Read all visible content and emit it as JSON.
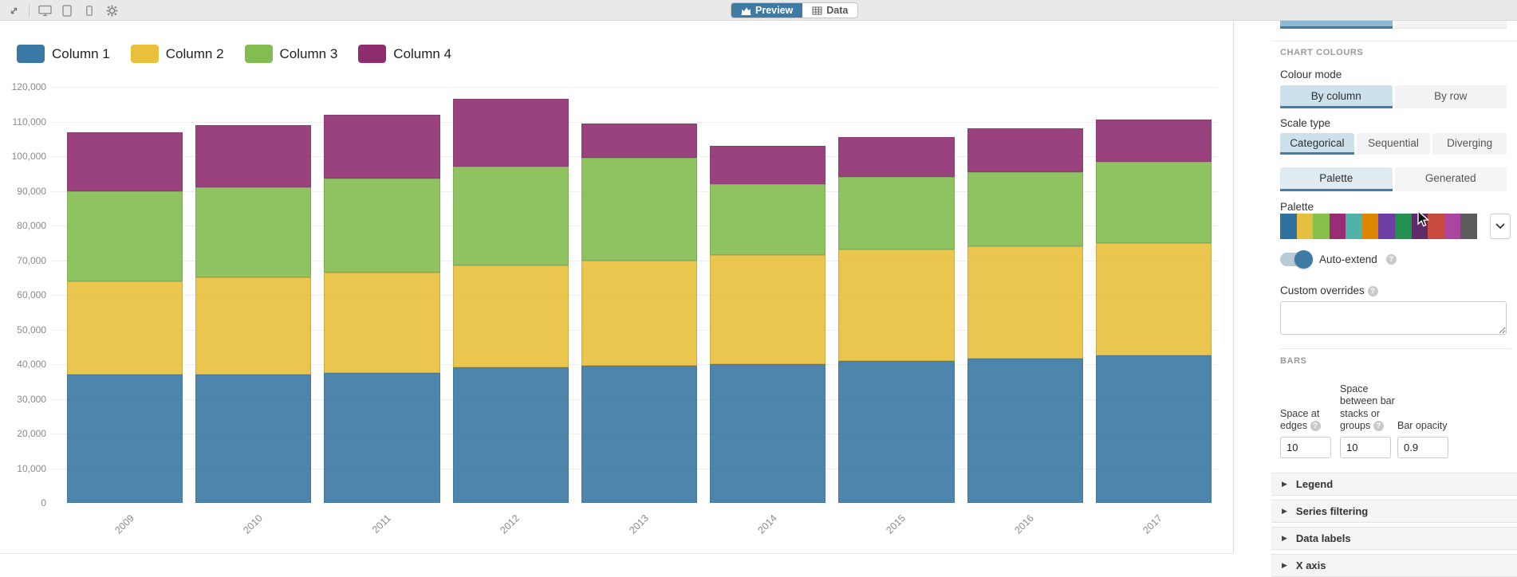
{
  "topbar": {
    "icons": [
      "expand-icon",
      "desktop-icon",
      "tablet-icon",
      "phone-icon",
      "gear-icon"
    ],
    "preview_label": "Preview",
    "data_label": "Data"
  },
  "chart_data": {
    "type": "bar",
    "stacked": true,
    "title": "",
    "categories": [
      "2009",
      "2010",
      "2011",
      "2012",
      "2013",
      "2014",
      "2015",
      "2016",
      "2017"
    ],
    "series": [
      {
        "name": "Column 1",
        "color": "#3a78a5",
        "values": [
          37000,
          37000,
          37500,
          39000,
          39500,
          40000,
          41000,
          41500,
          42500
        ]
      },
      {
        "name": "Column 2",
        "color": "#e9c03b",
        "values": [
          27000,
          28000,
          29000,
          29500,
          30500,
          31500,
          32000,
          32500,
          32500
        ]
      },
      {
        "name": "Column 3",
        "color": "#83bd52",
        "values": [
          26000,
          26000,
          27000,
          28500,
          29500,
          20500,
          21000,
          21500,
          23500
        ]
      },
      {
        "name": "Column 4",
        "color": "#8f2e6f",
        "values": [
          17000,
          18000,
          18500,
          19500,
          10000,
          11000,
          11500,
          12500,
          12000
        ]
      }
    ],
    "totals": [
      107000,
      109000,
      112000,
      116500,
      109500,
      103000,
      105500,
      108000,
      110500
    ],
    "ylim": [
      0,
      120000
    ],
    "ytick_step": 10000,
    "grid": "horizontal",
    "legend_position": "top-left",
    "x_label_rotation": -45,
    "bar_opacity": 0.9
  },
  "panel": {
    "section_title": "CHART COLOURS",
    "colour_mode": {
      "label": "Colour mode",
      "options": [
        "By column",
        "By row"
      ],
      "selected": "By column"
    },
    "scale_type": {
      "label": "Scale type",
      "options": [
        "Categorical",
        "Sequential",
        "Diverging"
      ],
      "selected": "Categorical"
    },
    "palette_tabs": {
      "options": [
        "Palette",
        "Generated"
      ],
      "selected": "Palette"
    },
    "palette": {
      "label": "Palette",
      "colors": [
        "#2f72a0",
        "#e5c03f",
        "#88c04c",
        "#992c74",
        "#4fb3a9",
        "#dd8600",
        "#6e3fa3",
        "#22904f",
        "#5e2c68",
        "#c94b40",
        "#ab45a0",
        "#5c5c5c"
      ],
      "dropdown_icon": "chevron-down-icon"
    },
    "auto_extend": {
      "label": "Auto-extend",
      "enabled": true,
      "help_icon": "question-mark-icon"
    },
    "custom_overrides": {
      "label": "Custom overrides",
      "value": "",
      "help_icon": "question-mark-icon"
    },
    "bars_section": {
      "section_title": "BARS",
      "fields": [
        {
          "label": "Space at edges",
          "value": "10",
          "has_help": true
        },
        {
          "label": "Space between bar stacks or groups",
          "value": "10",
          "has_help": true
        },
        {
          "label": "Bar opacity",
          "value": "0.9",
          "has_help": false
        }
      ]
    },
    "accordions": [
      "Legend",
      "Series filtering",
      "Data labels",
      "X axis"
    ]
  }
}
